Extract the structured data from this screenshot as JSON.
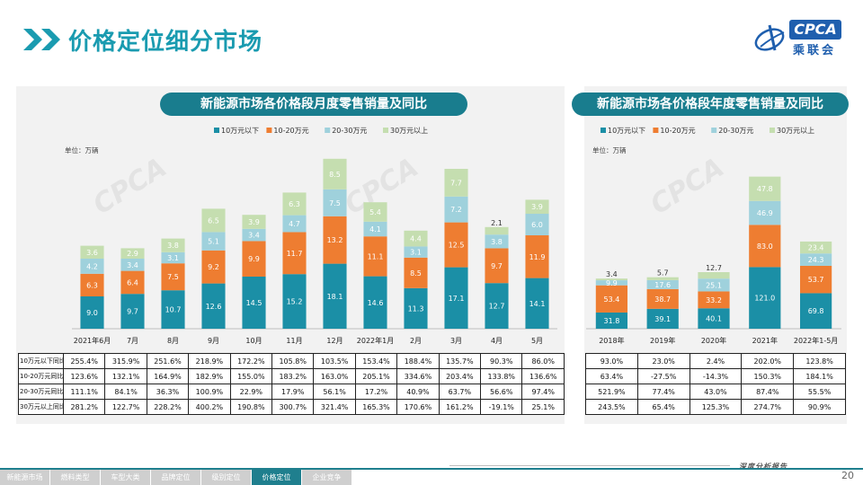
{
  "page": {
    "title": "价格定位细分市场",
    "page_number": "20",
    "footer_note": "深度分析报告"
  },
  "logo": {
    "cpca": "CPCA",
    "cn": "乘联会"
  },
  "nav": {
    "items": [
      {
        "label": "新能源市场",
        "active": false
      },
      {
        "label": "燃料类型",
        "active": false
      },
      {
        "label": "车型大类",
        "active": false
      },
      {
        "label": "品牌定位",
        "active": false
      },
      {
        "label": "级别定位",
        "active": false
      },
      {
        "label": "价格定位",
        "active": true
      },
      {
        "label": "企业竞争",
        "active": false
      }
    ]
  },
  "colors": {
    "seg1": "#1b8fa6",
    "seg2": "#ee7d31",
    "seg3": "#9fd1dc",
    "seg4": "#c5deb0",
    "accent": "#197d8e"
  },
  "chart_data": [
    {
      "type": "bar",
      "stacked": true,
      "title": "新能源市场各价格段月度零售销量及同比",
      "unit": "单位：万辆",
      "legend_position": "top",
      "categories": [
        "2021年6月",
        "7月",
        "8月",
        "9月",
        "10月",
        "11月",
        "12月",
        "2022年1月",
        "2月",
        "3月",
        "4月",
        "5月"
      ],
      "series": [
        {
          "name": "10万元以下",
          "values": [
            9.0,
            9.7,
            10.7,
            12.6,
            14.5,
            15.2,
            18.1,
            14.6,
            11.3,
            17.1,
            12.7,
            14.1
          ]
        },
        {
          "name": "10-20万元",
          "values": [
            6.3,
            6.4,
            7.5,
            9.2,
            9.9,
            11.7,
            13.2,
            11.1,
            8.5,
            12.5,
            9.7,
            11.9
          ]
        },
        {
          "name": "20-30万元",
          "values": [
            4.2,
            3.4,
            3.1,
            5.1,
            3.4,
            4.7,
            7.5,
            4.1,
            3.1,
            7.2,
            3.8,
            6.0
          ]
        },
        {
          "name": "30万元以上",
          "values": [
            3.6,
            2.9,
            3.8,
            6.5,
            3.9,
            6.3,
            8.5,
            5.4,
            4.4,
            7.7,
            2.1,
            3.9
          ]
        }
      ],
      "table": {
        "rows": [
          {
            "label": "10万元以下同比",
            "values": [
              "255.4%",
              "315.9%",
              "251.6%",
              "218.9%",
              "172.2%",
              "105.8%",
              "103.5%",
              "153.4%",
              "188.4%",
              "135.7%",
              "90.3%",
              "86.0%"
            ]
          },
          {
            "label": "10-20万元同比",
            "values": [
              "123.6%",
              "132.1%",
              "164.9%",
              "182.9%",
              "155.0%",
              "183.2%",
              "163.0%",
              "205.1%",
              "334.6%",
              "203.4%",
              "133.8%",
              "136.6%"
            ]
          },
          {
            "label": "20-30万元同比",
            "values": [
              "111.1%",
              "84.1%",
              "36.3%",
              "100.9%",
              "22.9%",
              "17.9%",
              "56.1%",
              "17.2%",
              "40.9%",
              "63.7%",
              "56.6%",
              "97.4%"
            ]
          },
          {
            "label": "30万元以上同比",
            "values": [
              "281.2%",
              "122.7%",
              "228.2%",
              "400.2%",
              "190.8%",
              "300.7%",
              "321.4%",
              "165.3%",
              "170.6%",
              "161.2%",
              "-19.1%",
              "25.1%"
            ]
          }
        ]
      }
    },
    {
      "type": "bar",
      "stacked": true,
      "title": "新能源市场各价格段年度零售销量及同比",
      "unit": "单位：万辆",
      "legend_position": "top",
      "categories": [
        "2018年",
        "2019年",
        "2020年",
        "2021年",
        "2022年1-5月"
      ],
      "series": [
        {
          "name": "10万元以下",
          "values": [
            31.8,
            39.1,
            40.1,
            121.0,
            69.8
          ]
        },
        {
          "name": "10-20万元",
          "values": [
            53.4,
            38.7,
            33.2,
            83.0,
            53.7
          ]
        },
        {
          "name": "20-30万元",
          "values": [
            9.9,
            17.6,
            25.1,
            46.9,
            24.3
          ]
        },
        {
          "name": "30万元以上",
          "values": [
            3.4,
            5.7,
            12.7,
            47.8,
            23.4
          ]
        }
      ],
      "table": {
        "rows": [
          {
            "values": [
              "93.0%",
              "23.0%",
              "2.4%",
              "202.0%",
              "123.8%"
            ]
          },
          {
            "values": [
              "63.4%",
              "-27.5%",
              "-14.3%",
              "150.3%",
              "184.1%"
            ]
          },
          {
            "values": [
              "521.9%",
              "77.4%",
              "43.0%",
              "87.4%",
              "55.5%"
            ]
          },
          {
            "values": [
              "243.5%",
              "65.4%",
              "125.3%",
              "274.7%",
              "90.9%"
            ]
          }
        ]
      }
    }
  ]
}
